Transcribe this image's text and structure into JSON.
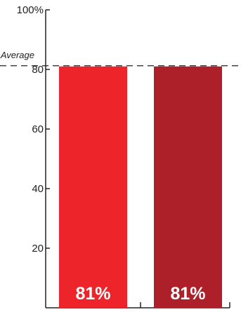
{
  "chart_data": {
    "type": "bar",
    "categories": [
      "",
      ""
    ],
    "values": [
      81,
      81
    ],
    "data_labels": [
      "81%",
      "81%"
    ],
    "bar_colors": [
      "#ee242b",
      "#ad1f29"
    ],
    "ylim": [
      0,
      100
    ],
    "yticks": [
      20,
      40,
      60,
      80
    ],
    "ytick_labels": [
      "20",
      "40",
      "60",
      "80"
    ],
    "ytop_label": "100%",
    "reference_line": {
      "label": "Average",
      "value": 81,
      "style": "dashed"
    },
    "grid": false,
    "legend": "none"
  }
}
